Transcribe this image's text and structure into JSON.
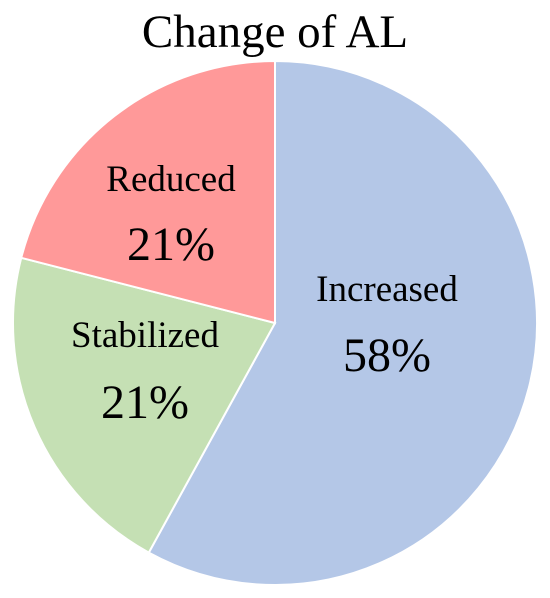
{
  "chart_data": {
    "type": "pie",
    "title": "Change of AL",
    "slices": [
      {
        "label": "Increased",
        "value": 58,
        "value_label": "58%",
        "color": "#b4c7e7"
      },
      {
        "label": "Stabilized",
        "value": 21,
        "value_label": "21%",
        "color": "#c5e0b4"
      },
      {
        "label": "Reduced",
        "value": 21,
        "value_label": "21%",
        "color": "#ff9999"
      }
    ],
    "start_angle_deg": 0,
    "direction": "clockwise",
    "legend": "none",
    "edge_color": "#ffffff"
  }
}
